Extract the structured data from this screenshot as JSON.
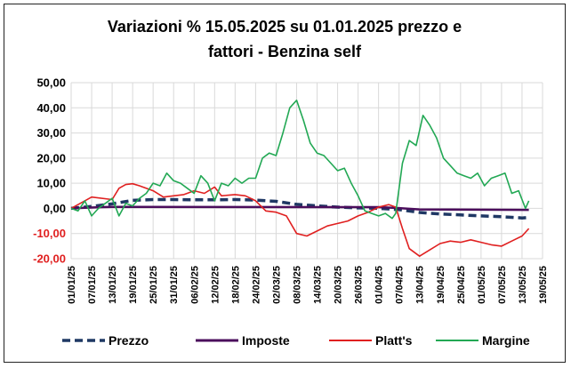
{
  "chart_data": {
    "type": "line",
    "title_line1": "Variazioni % 15.05.2025 su 01.01.2025 prezzo e",
    "title_line2": "fattori - Benzina self",
    "ylim": [
      -20,
      50
    ],
    "y_ticks": [
      "50,00",
      "40,00",
      "30,00",
      "20,00",
      "10,00",
      "0,00",
      "-10,00",
      "-20,00"
    ],
    "y_tick_values": [
      50,
      40,
      30,
      20,
      10,
      0,
      -10,
      -20
    ],
    "x_tick_labels": [
      "01/01/25",
      "07/01/25",
      "13/01/25",
      "19/01/25",
      "25/01/25",
      "31/01/25",
      "06/02/25",
      "12/02/25",
      "18/02/25",
      "24/02/25",
      "02/03/25",
      "08/03/25",
      "14/03/25",
      "20/03/25",
      "26/03/25",
      "01/04/25",
      "07/04/25",
      "13/04/25",
      "19/04/25",
      "25/04/25",
      "01/05/25",
      "07/05/25",
      "13/05/25",
      "19/05/25"
    ],
    "x_start": "01/01/25",
    "x_end": "19/05/25",
    "grid": true,
    "legend_position": "bottom",
    "series": [
      {
        "name": "Prezzo",
        "color": "#1f3864",
        "style": "dashed",
        "x": [
          "01/01/25",
          "07/01/25",
          "13/01/25",
          "19/01/25",
          "25/01/25",
          "31/01/25",
          "06/02/25",
          "12/02/25",
          "18/02/25",
          "24/02/25",
          "02/03/25",
          "08/03/25",
          "14/03/25",
          "20/03/25",
          "26/03/25",
          "01/04/25",
          "07/04/25",
          "13/04/25",
          "19/04/25",
          "25/04/25",
          "01/05/25",
          "07/05/25",
          "13/05/25",
          "15/05/25"
        ],
        "y": [
          0,
          0.8,
          1.8,
          3.2,
          3.5,
          3.5,
          3.4,
          3.4,
          3.5,
          3.3,
          2.8,
          1.6,
          1.0,
          0.5,
          0.2,
          0.0,
          -0.5,
          -1.6,
          -2.2,
          -2.6,
          -3.0,
          -3.3,
          -3.8,
          -3.6
        ]
      },
      {
        "name": "Imposte",
        "color": "#4b0d5c",
        "style": "solid",
        "x": [
          "01/01/25",
          "10/01/25",
          "13/01/25",
          "01/04/25",
          "07/04/25",
          "13/04/25",
          "15/05/25"
        ],
        "y": [
          0,
          0.5,
          0.6,
          0.5,
          0.1,
          -0.4,
          -0.6
        ]
      },
      {
        "name": "Platt's",
        "color": "#e02020",
        "style": "solid",
        "x": [
          "01/01/25",
          "05/01/25",
          "07/01/25",
          "13/01/25",
          "15/01/25",
          "17/01/25",
          "19/01/25",
          "21/01/25",
          "25/01/25",
          "28/01/25",
          "31/01/25",
          "03/02/25",
          "06/02/25",
          "09/02/25",
          "12/02/25",
          "14/02/25",
          "18/02/25",
          "21/02/25",
          "24/02/25",
          "27/02/25",
          "02/03/25",
          "05/03/25",
          "08/03/25",
          "11/03/25",
          "14/03/25",
          "17/03/25",
          "20/03/25",
          "23/03/25",
          "26/03/25",
          "29/03/25",
          "01/04/25",
          "04/04/25",
          "06/04/25",
          "08/04/25",
          "10/04/25",
          "13/04/25",
          "16/04/25",
          "19/04/25",
          "22/04/25",
          "25/04/25",
          "28/04/25",
          "01/05/25",
          "04/05/25",
          "07/05/25",
          "10/05/25",
          "13/05/25",
          "15/05/25"
        ],
        "y": [
          0,
          3,
          4.5,
          3.5,
          8,
          9.5,
          9.8,
          9,
          7,
          4.5,
          5,
          5.5,
          7,
          6,
          8.5,
          5,
          5.5,
          5,
          3,
          -1,
          -1.5,
          -3,
          -10,
          -11,
          -9,
          -7,
          -6,
          -5,
          -3,
          -1.5,
          0.5,
          1.5,
          0.5,
          -8,
          -16,
          -19,
          -16.5,
          -14,
          -13,
          -13.5,
          -12.5,
          -13.5,
          -14.5,
          -15,
          -13,
          -11,
          -8
        ]
      },
      {
        "name": "Margine",
        "color": "#22a854",
        "style": "solid",
        "x": [
          "01/01/25",
          "03/01/25",
          "05/01/25",
          "07/01/25",
          "09/01/25",
          "11/01/25",
          "13/01/25",
          "15/01/25",
          "17/01/25",
          "19/01/25",
          "21/01/25",
          "23/01/25",
          "25/01/25",
          "27/01/25",
          "29/01/25",
          "31/01/25",
          "02/02/25",
          "04/02/25",
          "06/02/25",
          "08/02/25",
          "10/02/25",
          "12/02/25",
          "14/02/25",
          "16/02/25",
          "18/02/25",
          "20/02/25",
          "22/02/25",
          "24/02/25",
          "26/02/25",
          "28/02/25",
          "02/03/25",
          "04/03/25",
          "06/03/25",
          "08/03/25",
          "10/03/25",
          "12/03/25",
          "14/03/25",
          "16/03/25",
          "18/03/25",
          "20/03/25",
          "22/03/25",
          "24/03/25",
          "26/03/25",
          "28/03/25",
          "30/03/25",
          "01/04/25",
          "03/04/25",
          "05/04/25",
          "06/04/25",
          "08/04/25",
          "10/04/25",
          "12/04/25",
          "14/04/25",
          "16/04/25",
          "18/04/25",
          "20/04/25",
          "22/04/25",
          "24/04/25",
          "26/04/25",
          "28/04/25",
          "30/04/25",
          "02/05/25",
          "04/05/25",
          "06/05/25",
          "08/05/25",
          "10/05/25",
          "12/05/25",
          "14/05/25",
          "15/05/25"
        ],
        "y": [
          0,
          -1,
          3,
          -3,
          0,
          2,
          4,
          -3,
          2,
          1,
          4,
          6,
          10,
          9,
          14,
          11,
          10,
          8,
          6,
          13,
          10,
          3,
          10,
          9,
          12,
          10,
          12,
          12,
          20,
          22,
          21,
          30,
          40,
          43,
          35,
          26,
          22,
          21,
          18,
          15,
          16,
          10,
          5,
          -1,
          -2,
          -3,
          -2,
          -4,
          -2,
          18,
          27,
          25,
          37,
          33,
          28,
          20,
          17,
          14,
          13,
          12,
          14,
          9,
          12,
          13,
          14,
          6,
          7,
          0,
          3
        ]
      }
    ]
  }
}
